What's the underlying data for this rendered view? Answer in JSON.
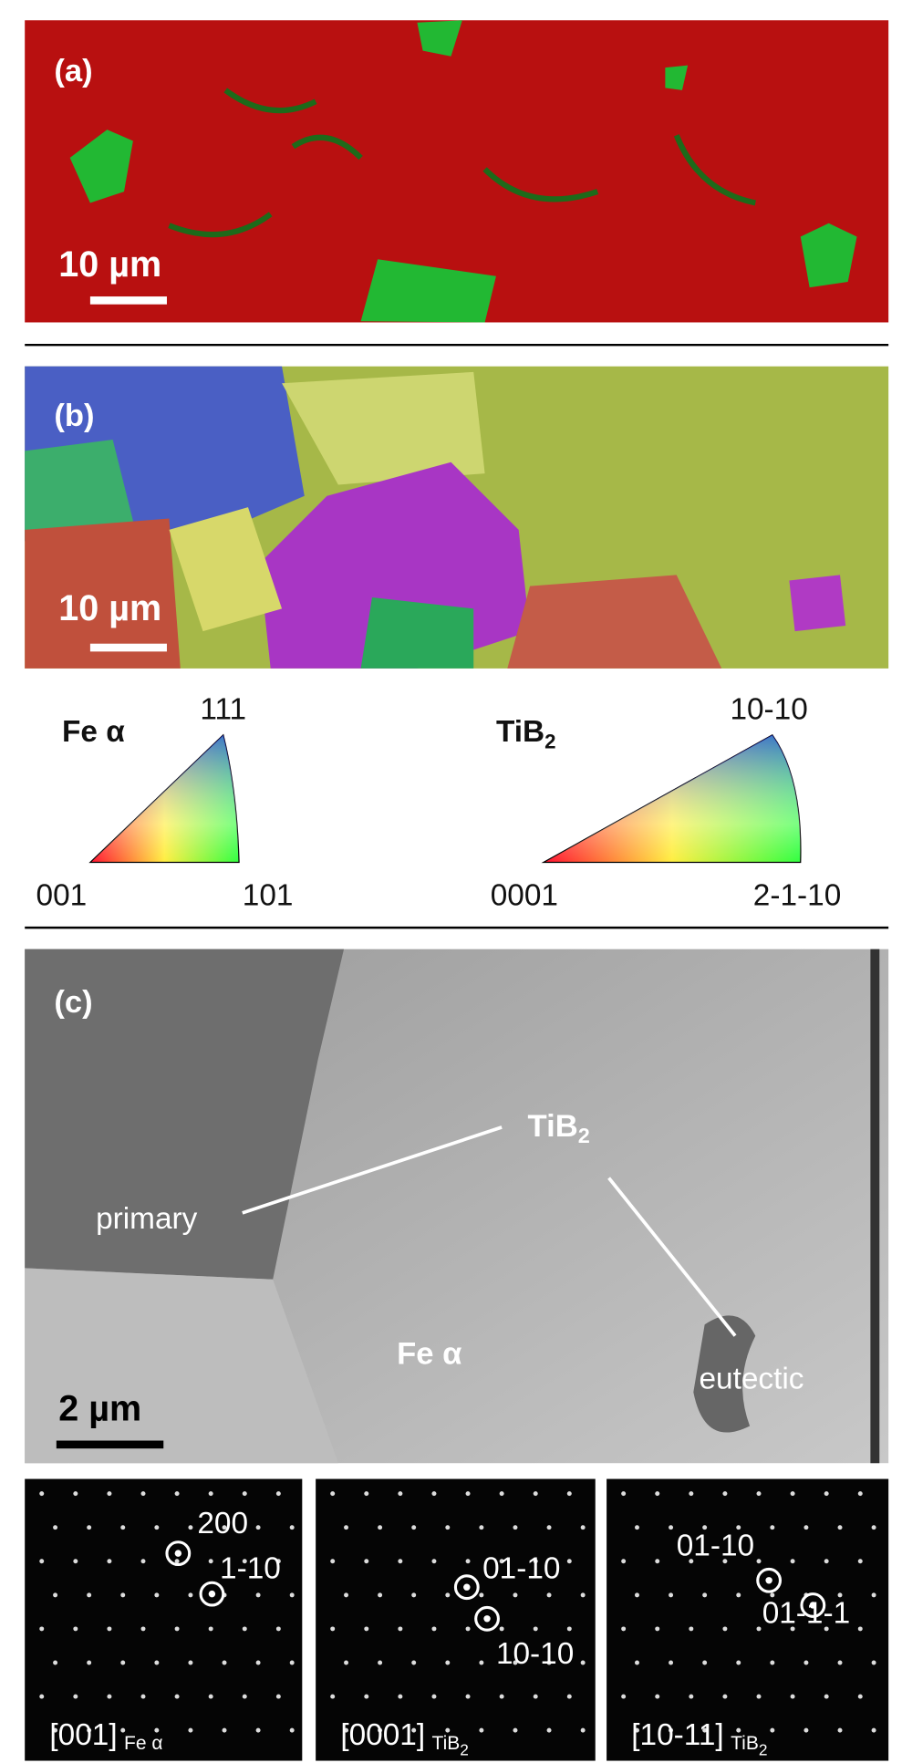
{
  "panels": {
    "a": {
      "label": "(a)",
      "scale": "10 µm"
    },
    "b": {
      "label": "(b)",
      "scale": "10 µm"
    },
    "legend": {
      "fe": {
        "title": "Fe α",
        "top": "111",
        "left": "001",
        "right": "101"
      },
      "tib2": {
        "title": {
          "main": "TiB",
          "sub": "2"
        },
        "top": "10-10",
        "left": "0001",
        "right": "2-1-10"
      }
    },
    "c": {
      "label": "(c)",
      "tib2": {
        "main": "TiB",
        "sub": "2"
      },
      "primary": "primary",
      "fe": "Fe α",
      "eutectic": "eutectic",
      "scale": "2 µm"
    },
    "diffraction": [
      {
        "spots": [
          "200",
          "1-10"
        ],
        "zone": {
          "main": "[001]",
          "sub": "Fe α"
        }
      },
      {
        "spots": [
          "01-10",
          "10-10"
        ],
        "zone": {
          "main": "[0001]",
          "sub": "TiB",
          "sub2": "2"
        }
      },
      {
        "spots": [
          "01-10",
          "01-1-1"
        ],
        "zone": {
          "main": "[10-11]",
          "sub": "TiB",
          "sub2": "2"
        }
      }
    ]
  }
}
